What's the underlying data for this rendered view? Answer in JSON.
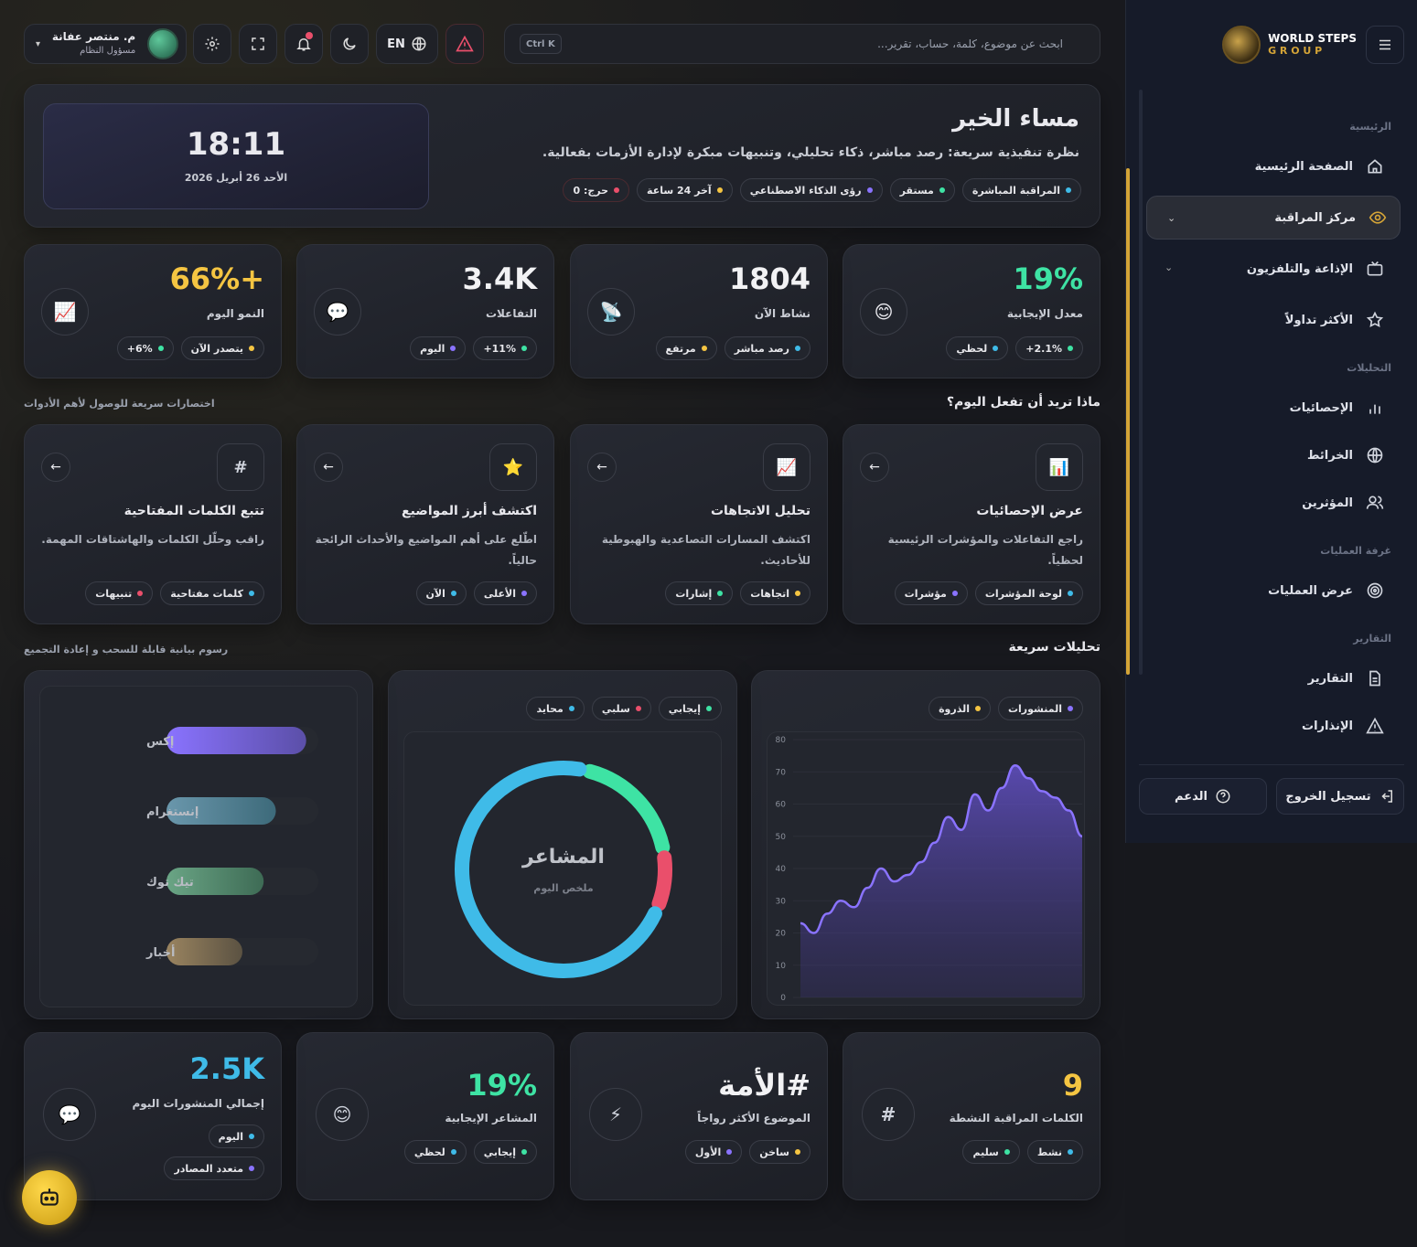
{
  "colors": {
    "green": "#3ee3a4",
    "yellow": "#f5c542",
    "red": "#ea4f6b",
    "blue": "#3fbbe8",
    "purple": "#8a73ff"
  },
  "header": {
    "search_placeholder": "ابحث عن موضوع، كلمة، حساب، تقرير...",
    "shortcut": "Ctrl K",
    "lang": "EN",
    "user_name": "م. منتصر عفانة",
    "user_role": "مسؤول النظام"
  },
  "welcome": {
    "title": "مساء الخير",
    "subtitle": "نظرة تنفيذية سريعة: رصد مباشر، ذكاء تحليلي، وتنبيهات مبكرة لإدارة الأزمات بفعالية.",
    "time": "18:11",
    "date": "الأحد 26 أبريل 2026",
    "pills": [
      "المراقبة المباشرة",
      "مستقر",
      "رؤى الذكاء الاصطناعي",
      "آخر 24 ساعة",
      "حرج: 0"
    ]
  },
  "stats": [
    {
      "value": "19%",
      "label": "معدل الإيجابية",
      "icon": "smile-icon",
      "pills": [
        "2.1%+",
        "لحظي"
      ]
    },
    {
      "value": "1804",
      "label": "نشاط الآن",
      "icon": "satellite-icon",
      "pills": [
        "رصد مباشر",
        "مرتفع"
      ]
    },
    {
      "value": "3.4K",
      "label": "التفاعلات",
      "icon": "chat-icon",
      "pills": [
        "11%+",
        "اليوم"
      ]
    },
    {
      "value": "+66%",
      "label": "النمو اليوم",
      "icon": "trend-icon",
      "pills": [
        "يتصدر الآن",
        "6%+"
      ]
    }
  ],
  "quick": {
    "title": "ماذا تريد أن تفعل اليوم؟",
    "hint": "اختصارات سريعة للوصول لأهم الأدوات",
    "items": [
      {
        "title": "عرض الإحصائيات",
        "desc": "راجع التفاعلات والمؤشرات الرئيسية لحظياً.",
        "icon": "bar-chart-icon",
        "pills": [
          "لوحة المؤشرات",
          "مؤشرات"
        ]
      },
      {
        "title": "تحليل الاتجاهات",
        "desc": "اكتشف المسارات التصاعدية والهبوطية للأحاديث.",
        "icon": "trend-icon",
        "pills": [
          "اتجاهات",
          "إشارات"
        ]
      },
      {
        "title": "اكتشف أبرز المواضيع",
        "desc": "اطّلع على أهم المواضيع والأحداث الرائجة حالياً.",
        "icon": "star-icon",
        "pills": [
          "الأعلى",
          "الآن"
        ]
      },
      {
        "title": "تتبع الكلمات المفتاحية",
        "desc": "راقب وحلّل الكلمات والهاشتاقات المهمة.",
        "icon": "hash-icon",
        "pills": [
          "كلمات مفتاحية",
          "تنبيهات"
        ]
      }
    ]
  },
  "analytics": {
    "title": "تحليلات سريعة",
    "hint": "رسوم بيانية قابلة للسحب و إعادة التجميع",
    "donut": {
      "center": "المشاعر",
      "sub": "ملخص اليوم",
      "legend": [
        "إيجابي",
        "سلبي",
        "محايد"
      ]
    },
    "area_legend": [
      "المنشورات",
      "الذروة"
    ],
    "bars_labels": [
      "إكس",
      "إنستغرام",
      "تيك توك",
      "أخبار"
    ]
  },
  "chart_data": [
    {
      "type": "area",
      "series": [
        {
          "name": "المنشورات",
          "values": [
            23,
            20,
            26,
            30,
            28,
            34,
            40,
            36,
            38,
            42,
            48,
            56,
            52,
            63,
            58,
            65,
            72,
            68,
            64,
            62,
            58,
            50
          ]
        }
      ],
      "yticks": [
        0,
        10,
        20,
        30,
        40,
        50,
        60,
        70,
        80
      ],
      "ylim": [
        0,
        80
      ],
      "grid": true
    },
    {
      "type": "pie",
      "categories": [
        "إيجابي",
        "سلبي",
        "محايد"
      ],
      "values": [
        19,
        9,
        72
      ]
    },
    {
      "type": "bar",
      "categories": [
        "إكس",
        "إنستغرام",
        "تيك توك",
        "أخبار"
      ],
      "values": [
        92,
        72,
        64,
        50
      ]
    }
  ],
  "bottom": [
    {
      "value": "9",
      "label": "الكلمات المراقبة النشطة",
      "icon": "#",
      "pills": [
        "نشط",
        "سليم"
      ]
    },
    {
      "value": "#الأمة",
      "label": "الموضوع الأكثر رواجاً",
      "icon": "⚡",
      "pills": [
        "ساخن",
        "الأول"
      ]
    },
    {
      "value": "19%",
      "label": "المشاعر الإيجابية",
      "icon": "😊",
      "pills": [
        "إيجابي",
        "لحظي"
      ]
    },
    {
      "value": "2.5K",
      "label": "إجمالي المنشورات اليوم",
      "icon": "💬",
      "pills": [
        "اليوم",
        "متعدد المصادر"
      ]
    }
  ],
  "sidebar": {
    "brand1": "WORLD STEPS",
    "brand2": "G R O U P",
    "sec1": "الرئيسية",
    "home": "الصفحة الرئيسية",
    "monitor": "مركز المراقبة",
    "tv": "الإذاعة والتلفزيون",
    "trending": "الأكثر تداولاً",
    "sec2": "التحليلات",
    "stats": "الإحصائيات",
    "maps": "الخرائط",
    "influencers": "المؤثرين",
    "sec3": "غرفة العمليات",
    "ops": "عرض العمليات",
    "sec4": "التقارير",
    "reports": "التقارير",
    "alerts": "الإنذارات",
    "logout": "تسجيل الخروج",
    "support": "الدعم"
  }
}
